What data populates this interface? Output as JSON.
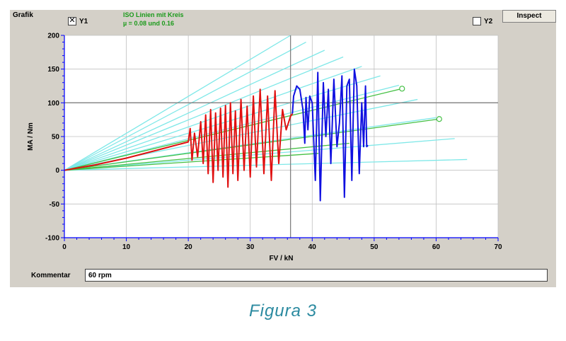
{
  "window": {
    "panel_title": "Grafik",
    "y1_label": "Y1",
    "y1_checked": true,
    "y2_label": "Y2",
    "y2_checked": false,
    "inspect_label": "Inspect",
    "legend_line1": "ISO Linien mit Kreis",
    "legend_line2": "µ = 0.08 und 0.16",
    "comment_label": "Kommentar",
    "comment_value": "60 rpm"
  },
  "caption": "Figura 3",
  "colors": {
    "iso_lines": "#7fe8e8",
    "green_lines": "#44c044",
    "red_series": "#e01010",
    "blue_series": "#1010e0",
    "plot_bg": "#ffffff",
    "grid": "#c0c0c0",
    "axis": "#0000ff"
  },
  "chart_data": {
    "type": "line",
    "xlabel": "FV / kN",
    "ylabel": "MA / Nm",
    "xlim": [
      0,
      70
    ],
    "ylim": [
      -100,
      200
    ],
    "x_ticks": [
      0,
      10,
      20,
      30,
      40,
      50,
      60,
      70
    ],
    "y_ticks": [
      -100,
      -50,
      0,
      50,
      100,
      150,
      200
    ],
    "grid": true,
    "reference_lines": {
      "horizontal_y": 100,
      "vertical_x": 36.5
    },
    "iso_lines": [
      {
        "to": [
          36.5,
          200
        ]
      },
      {
        "to": [
          39,
          190
        ]
      },
      {
        "to": [
          42,
          178
        ]
      },
      {
        "to": [
          45,
          168
        ]
      },
      {
        "to": [
          48,
          154
        ]
      },
      {
        "to": [
          51,
          140
        ]
      },
      {
        "to": [
          54,
          126
        ]
      },
      {
        "to": [
          57,
          105
        ]
      },
      {
        "to": [
          60,
          78
        ]
      },
      {
        "to": [
          63,
          47
        ]
      },
      {
        "to": [
          65,
          16
        ]
      }
    ],
    "green_lines": [
      {
        "to": [
          54.5,
          121
        ],
        "marker": true
      },
      {
        "to": [
          60.5,
          76
        ],
        "marker": true
      },
      {
        "to": [
          46,
          40
        ],
        "marker": false
      },
      {
        "to": [
          41,
          25
        ],
        "marker": false
      }
    ],
    "series": [
      {
        "color": "red",
        "points": [
          [
            0,
            0
          ],
          [
            5,
            8
          ],
          [
            10,
            18
          ],
          [
            15,
            30
          ],
          [
            20,
            42
          ],
          [
            20.3,
            62
          ],
          [
            20.6,
            15
          ],
          [
            21,
            55
          ],
          [
            21.5,
            20
          ],
          [
            22,
            72
          ],
          [
            22.4,
            10
          ],
          [
            22.8,
            82
          ],
          [
            23.2,
            -5
          ],
          [
            23.6,
            90
          ],
          [
            24,
            -18
          ],
          [
            24.4,
            85
          ],
          [
            24.8,
            0
          ],
          [
            25.2,
            92
          ],
          [
            25.6,
            -10
          ],
          [
            26,
            96
          ],
          [
            26.4,
            -25
          ],
          [
            26.8,
            100
          ],
          [
            27.2,
            -5
          ],
          [
            27.6,
            88
          ],
          [
            28,
            -15
          ],
          [
            28.5,
            105
          ],
          [
            29,
            0
          ],
          [
            29.5,
            95
          ],
          [
            30,
            -10
          ],
          [
            30.5,
            110
          ],
          [
            31,
            5
          ],
          [
            31.6,
            120
          ],
          [
            32.2,
            -5
          ],
          [
            32.8,
            110
          ],
          [
            33.4,
            -15
          ],
          [
            34,
            118
          ],
          [
            34.6,
            10
          ],
          [
            35.2,
            90
          ],
          [
            35.8,
            60
          ],
          [
            36.5,
            80
          ],
          [
            36.8,
            84
          ]
        ]
      },
      {
        "color": "blue",
        "points": [
          [
            36.8,
            84
          ],
          [
            37,
            110
          ],
          [
            37.5,
            125
          ],
          [
            38,
            120
          ],
          [
            38.5,
            90
          ],
          [
            38.8,
            40
          ],
          [
            39,
            108
          ],
          [
            39.3,
            60
          ],
          [
            39.6,
            110
          ],
          [
            40,
            100
          ],
          [
            40.5,
            -15
          ],
          [
            40.9,
            145
          ],
          [
            41.3,
            -45
          ],
          [
            41.8,
            130
          ],
          [
            42.2,
            50
          ],
          [
            42.6,
            120
          ],
          [
            43,
            10
          ],
          [
            43.5,
            135
          ],
          [
            44,
            35
          ],
          [
            44.4,
            70
          ],
          [
            44.8,
            140
          ],
          [
            45.2,
            -40
          ],
          [
            45.6,
            125
          ],
          [
            46,
            135
          ],
          [
            46.4,
            -15
          ],
          [
            46.8,
            150
          ],
          [
            47.2,
            125
          ],
          [
            47.6,
            -5
          ],
          [
            48,
            100
          ],
          [
            48.3,
            35
          ],
          [
            48.6,
            125
          ],
          [
            48.8,
            35
          ],
          [
            49,
            37
          ]
        ]
      }
    ]
  }
}
